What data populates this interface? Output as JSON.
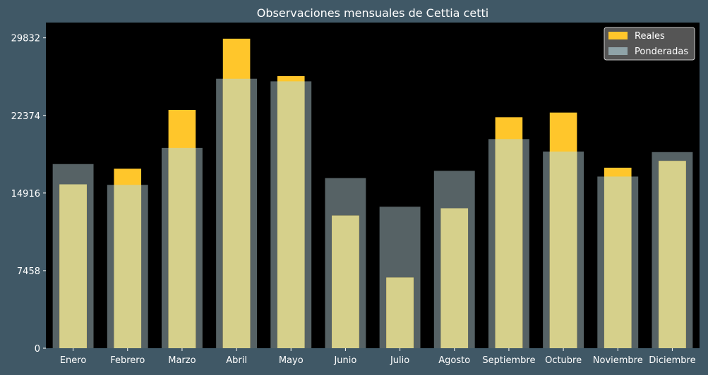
{
  "chart_data": {
    "type": "bar",
    "title": "Observaciones mensuales de Cettia cetti",
    "xlabel": "",
    "ylabel": "",
    "categories": [
      "Enero",
      "Febrero",
      "Marzo",
      "Abril",
      "Mayo",
      "Junio",
      "Julio",
      "Agosto",
      "Septiembre",
      "Octubre",
      "Noviembre",
      "Diciembre"
    ],
    "series": [
      {
        "name": "Reales",
        "color": "#ffc62b",
        "values": [
          15750,
          17250,
          22900,
          29750,
          26150,
          12750,
          6800,
          13450,
          22200,
          22650,
          17350,
          18000
        ]
      },
      {
        "name": "Ponderadas",
        "color": "#8fa3a8",
        "values": [
          17700,
          15700,
          19250,
          25900,
          25650,
          16350,
          13600,
          17050,
          20100,
          18900,
          16500,
          18850
        ]
      }
    ],
    "yticks": [
      0,
      7458,
      14916,
      22374,
      29832
    ],
    "ylim": [
      0,
      31300
    ],
    "legend_position": "top-right",
    "grid": false,
    "colors": {
      "figure_background": "#405866",
      "plot_background": "#000000",
      "text": "#ffffff",
      "overlap": "#d6d08b"
    }
  }
}
